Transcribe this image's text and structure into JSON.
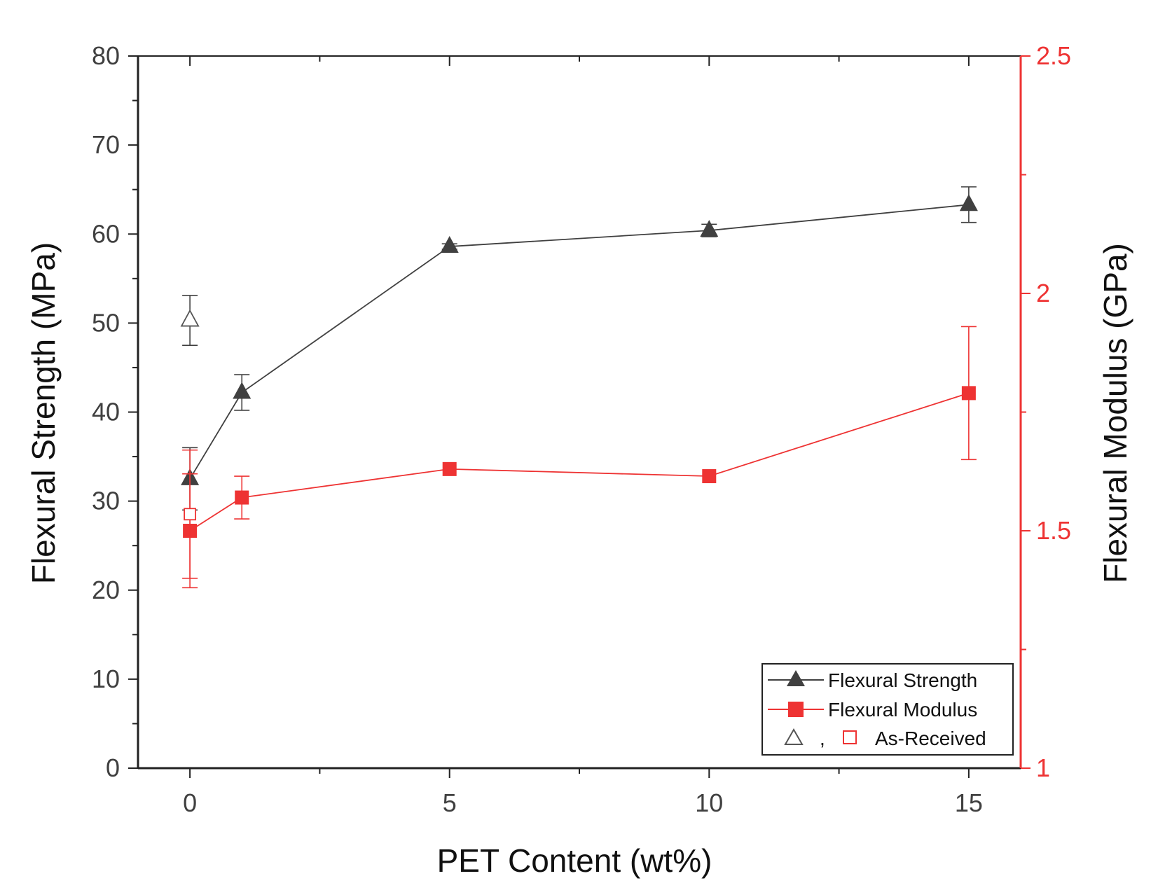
{
  "chart_data": {
    "type": "line",
    "xlabel": "PET Content (wt%)",
    "ylabel": "Flexural Strength (MPa)",
    "y2label": "Flexural Modulus (GPa)",
    "xlim": [
      -1,
      16
    ],
    "ylim": [
      0,
      80
    ],
    "y2lim": [
      1,
      2.5
    ],
    "x_ticks": [
      0,
      5,
      10,
      15
    ],
    "y_ticks": [
      0,
      10,
      20,
      30,
      40,
      50,
      60,
      70,
      80
    ],
    "y2_ticks": [
      1,
      1.5,
      2,
      2.5
    ],
    "x_tick_labels": [
      "0",
      "5",
      "10",
      "15"
    ],
    "y_tick_labels": [
      "0",
      "10",
      "20",
      "30",
      "40",
      "50",
      "60",
      "70",
      "80"
    ],
    "y2_tick_labels": [
      "1",
      "1.5",
      "2",
      "2.5"
    ],
    "series": [
      {
        "name": "Flexural Strength",
        "axis": "left",
        "color": "#404040",
        "marker": "triangle-filled",
        "x": [
          0,
          1,
          5,
          10,
          15
        ],
        "values": [
          32.5,
          42.2,
          58.6,
          60.4,
          63.3
        ],
        "errors": [
          3.5,
          2.0,
          0.3,
          0.7,
          2.0
        ]
      },
      {
        "name": "Flexural Modulus",
        "axis": "right",
        "color": "#ee3333",
        "marker": "square-filled",
        "x": [
          0,
          1,
          5,
          10,
          15
        ],
        "values": [
          1.5,
          1.57,
          1.63,
          1.615,
          1.79
        ],
        "errors": [
          0.12,
          0.045,
          0.0,
          0.0,
          0.14
        ]
      },
      {
        "name": "As-Received (Strength)",
        "axis": "left",
        "color": "#404040",
        "marker": "triangle-open",
        "x": [
          0
        ],
        "values": [
          50.3
        ],
        "errors": [
          2.8
        ]
      },
      {
        "name": "As-Received (Modulus)",
        "axis": "right",
        "color": "#ee3333",
        "marker": "square-open",
        "x": [
          0
        ],
        "values": [
          1.535
        ],
        "errors": [
          0.135
        ]
      }
    ],
    "legend": {
      "position": "bottom-right",
      "entries": [
        "Flexural Strength",
        "Flexural Modulus",
        "As-Received"
      ],
      "separator": ","
    },
    "colors": {
      "strength": "#404040",
      "modulus": "#ee3333",
      "axis": "#222222"
    }
  }
}
